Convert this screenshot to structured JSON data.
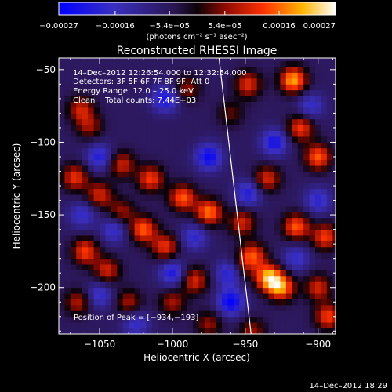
{
  "chart_data": {
    "type": "heatmap",
    "title": "Reconstructed RHESSI Image",
    "xlabel": "Heliocentric X (arcsec)",
    "ylabel": "Heliocentric Y (arcsec)",
    "xlim": [
      -1078,
      -888
    ],
    "ylim": [
      -232,
      -42
    ],
    "x_ticks": [
      -1050,
      -1000,
      -950,
      -900
    ],
    "x_tick_labels": [
      "−1050",
      "−1000",
      "−950",
      "−900"
    ],
    "y_ticks": [
      -50,
      -100,
      -150,
      -200
    ],
    "y_tick_labels": [
      "−50",
      "−100",
      "−150",
      "−200"
    ],
    "colorbar": {
      "range": [
        -0.00027,
        0.00027
      ],
      "tick_values": [
        -0.00027,
        -0.00016,
        -5.4e-05,
        5.4e-05,
        0.00016,
        0.00027
      ],
      "tick_labels": [
        "−0.00027",
        "−0.00016",
        "−5.4e−05",
        "5.4e−05",
        "0.00016",
        "0.00027"
      ],
      "units_label": "(photons cm⁻² s⁻¹ asec⁻²)"
    },
    "annotations": {
      "time_range": "14–Dec–2012 12:26:54.000 to 12:32:54.000",
      "detectors": "Detectors: 3F 5F 6F 7F 8F 9F, Att 0",
      "energy_range": "Energy Range: 12.0 – 25.0 keV",
      "clean_counts": "Clean    Total counts: 7.44E+03",
      "peak_position": "Position of Peak = [−934,−193]"
    },
    "limb_line": {
      "x": [
        -968,
        -946
      ],
      "y": [
        -42,
        -232
      ]
    },
    "peak": {
      "x": -934,
      "y": -193
    },
    "blobs": [
      {
        "x": -1063,
        "y": -77,
        "value": 0.00015
      },
      {
        "x": -1057,
        "y": -89,
        "value": 0.00012
      },
      {
        "x": -1067,
        "y": -124,
        "value": 0.00018
      },
      {
        "x": -1050,
        "y": -136,
        "value": 0.00016
      },
      {
        "x": -1035,
        "y": -148,
        "value": 0.00013
      },
      {
        "x": -1060,
        "y": -175,
        "value": 0.00019
      },
      {
        "x": -1045,
        "y": -188,
        "value": 0.00016
      },
      {
        "x": -1030,
        "y": -210,
        "value": 0.00013
      },
      {
        "x": -1065,
        "y": -210,
        "value": 0.00014
      },
      {
        "x": -1035,
        "y": -115,
        "value": 0.00016
      },
      {
        "x": -1015,
        "y": -125,
        "value": 0.00019
      },
      {
        "x": -993,
        "y": -138,
        "value": 0.00021
      },
      {
        "x": -975,
        "y": -148,
        "value": 0.00023
      },
      {
        "x": -1020,
        "y": -160,
        "value": 0.00021
      },
      {
        "x": -1005,
        "y": -172,
        "value": 0.00018
      },
      {
        "x": -985,
        "y": -195,
        "value": 0.00017
      },
      {
        "x": -1000,
        "y": -210,
        "value": 0.00013
      },
      {
        "x": -975,
        "y": -225,
        "value": 0.00012
      },
      {
        "x": -990,
        "y": -63,
        "value": 0.00012
      },
      {
        "x": -960,
        "y": -80,
        "value": 9e-05
      },
      {
        "x": -948,
        "y": -60,
        "value": 0.00017
      },
      {
        "x": -917,
        "y": -57,
        "value": 0.00026
      },
      {
        "x": -912,
        "y": -90,
        "value": 0.00019
      },
      {
        "x": -900,
        "y": -110,
        "value": 0.00021
      },
      {
        "x": -935,
        "y": -125,
        "value": 0.00017
      },
      {
        "x": -952,
        "y": -155,
        "value": 0.00016
      },
      {
        "x": -915,
        "y": -158,
        "value": 0.00021
      },
      {
        "x": -895,
        "y": -165,
        "value": 0.00019
      },
      {
        "x": -900,
        "y": -200,
        "value": 0.00016
      },
      {
        "x": -955,
        "y": -188,
        "value": 0.00013
      },
      {
        "x": -934,
        "y": -193,
        "value": 0.00027
      },
      {
        "x": -925,
        "y": -200,
        "value": 0.00023
      },
      {
        "x": -945,
        "y": -178,
        "value": 0.0002
      },
      {
        "x": -893,
        "y": -220,
        "value": 0.00019
      },
      {
        "x": -945,
        "y": -230,
        "value": 0.00012
      },
      {
        "x": -1005,
        "y": -70,
        "value": -0.00017
      },
      {
        "x": -975,
        "y": -110,
        "value": -0.00019
      },
      {
        "x": -948,
        "y": -135,
        "value": -0.00015
      },
      {
        "x": -930,
        "y": -100,
        "value": -0.00017
      },
      {
        "x": -960,
        "y": -190,
        "value": -0.00021
      },
      {
        "x": -960,
        "y": -210,
        "value": -0.0002
      },
      {
        "x": -1050,
        "y": -110,
        "value": -0.00015
      },
      {
        "x": -1040,
        "y": -160,
        "value": -0.00013
      },
      {
        "x": -1000,
        "y": -190,
        "value": -0.00016
      },
      {
        "x": -1050,
        "y": -205,
        "value": -0.00013
      },
      {
        "x": -900,
        "y": -140,
        "value": -0.00013
      },
      {
        "x": -915,
        "y": -180,
        "value": -0.00012
      },
      {
        "x": -1025,
        "y": -225,
        "value": -0.00012
      },
      {
        "x": -985,
        "y": -165,
        "value": -0.00013
      },
      {
        "x": -905,
        "y": -75,
        "value": -0.00012
      },
      {
        "x": -1062,
        "y": -150,
        "value": -0.00012
      }
    ],
    "grid": false,
    "legend": "colorbar-top"
  },
  "footer": {
    "timestamp": "14–Dec–2012 18:29"
  },
  "colors": {
    "background": "#000000",
    "text": "#ffffff"
  }
}
